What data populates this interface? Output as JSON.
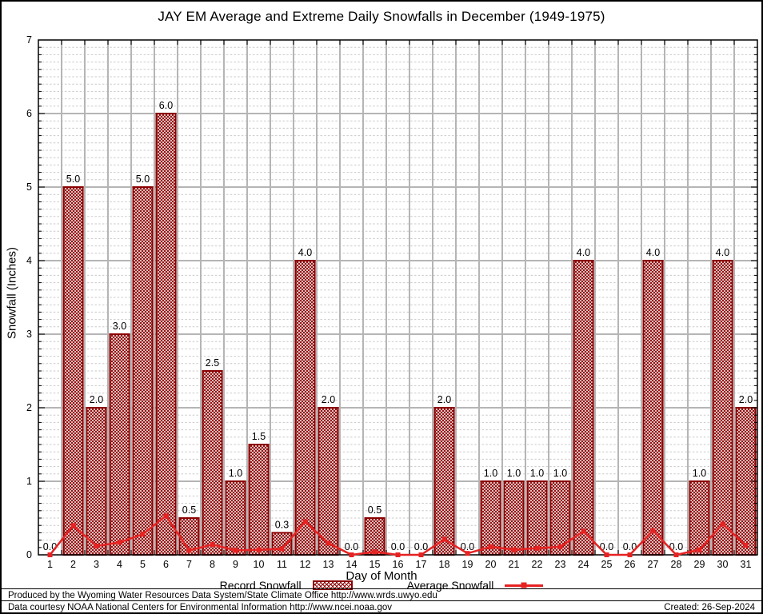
{
  "chart_data": {
    "type": "bar",
    "title": "JAY EM Average and Extreme Daily Snowfalls in December (1949-1975)",
    "xlabel": "Day of Month",
    "ylabel": "Snowfall (Inches)",
    "ylim": [
      0,
      7
    ],
    "y_major_step": 1,
    "y_minor_step": 0.1,
    "grid": true,
    "legend_position": "bottom-center",
    "categories": [
      1,
      2,
      3,
      4,
      5,
      6,
      7,
      8,
      9,
      10,
      11,
      12,
      13,
      14,
      15,
      16,
      17,
      18,
      19,
      20,
      21,
      22,
      23,
      24,
      25,
      26,
      27,
      28,
      29,
      30,
      31
    ],
    "series": [
      {
        "name": "Record Snowfall",
        "type": "bar",
        "color": "#8b0000",
        "fill": "hatch",
        "values": [
          0.0,
          5.0,
          2.0,
          3.0,
          5.0,
          6.0,
          0.5,
          2.5,
          1.0,
          1.5,
          0.3,
          4.0,
          2.0,
          0.0,
          0.5,
          0.0,
          0.0,
          2.0,
          0.0,
          1.0,
          1.0,
          1.0,
          1.0,
          4.0,
          0.0,
          0.0,
          4.0,
          0.0,
          1.0,
          4.0,
          2.0
        ],
        "labels": [
          "0.0",
          "5.0",
          "2.0",
          "3.0",
          "5.0",
          "6.0",
          "0.5",
          "2.5",
          "1.0",
          "1.5",
          "0.3",
          "4.0",
          "2.0",
          "0.0",
          "0.5",
          "0.0",
          "0.0",
          "2.0",
          "0.0",
          "1.0",
          "1.0",
          "1.0",
          "1.0",
          "4.0",
          "0.0",
          "0.0",
          "4.0",
          "0.0",
          "1.0",
          "4.0",
          "2.0"
        ]
      },
      {
        "name": "Average Snowfall",
        "type": "line",
        "color": "#e62222",
        "marker": "square",
        "values": [
          0.0,
          0.4,
          0.12,
          0.17,
          0.28,
          0.53,
          0.06,
          0.14,
          0.06,
          0.07,
          0.08,
          0.45,
          0.16,
          0.0,
          0.04,
          0.0,
          0.0,
          0.21,
          0.02,
          0.11,
          0.07,
          0.09,
          0.11,
          0.32,
          0.0,
          0.0,
          0.33,
          0.0,
          0.07,
          0.42,
          0.13
        ]
      }
    ],
    "grid_colors": {
      "major": "#b5b5b5",
      "minor": "#cacaca",
      "border": "#000000"
    }
  },
  "footer": {
    "produced_by": "Produced by the Wyoming Water Resources Data System/State Climate Office http://www.wrds.uwyo.edu",
    "data_courtesy": "Data courtesy NOAA National Centers for Environmental Information http://www.ncei.noaa.gov",
    "created": "Created: 26-Sep-2024"
  }
}
